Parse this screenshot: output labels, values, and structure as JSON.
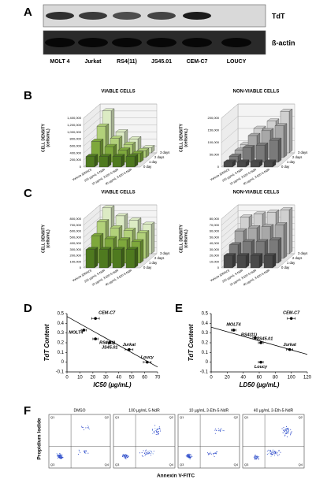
{
  "panel_labels": [
    "A",
    "B",
    "C",
    "D",
    "E",
    "F"
  ],
  "blot": {
    "bands": [
      "TdT",
      "ß-actin"
    ],
    "lanes": [
      "MOLT 4",
      "Jurkat",
      "RS4(11)",
      "JS45.01",
      "CEM-C7",
      "LOUCY"
    ]
  },
  "chart_data": [
    {
      "type": "bar3d",
      "title": "VIABLE CELLS",
      "y_label": [
        "CELL DENSITY",
        "(cells/mL)"
      ],
      "categories": [
        "Vehicle (DMSO)",
        "100 µg/mL 5-NdR",
        "10 µg/mL 3-Eth-5-NdR",
        "40 µg/mL 3-Eth-5-NdR"
      ],
      "series": [
        {
          "name": "0 day",
          "color": "#4f7a1f",
          "values": [
            300000,
            300000,
            300000,
            300000
          ]
        },
        {
          "name": "1 day",
          "color": "#7ea83c",
          "values": [
            600000,
            450000,
            350000,
            250000
          ]
        },
        {
          "name": "2 days",
          "color": "#b2d17a",
          "values": [
            900000,
            550000,
            380000,
            200000
          ]
        },
        {
          "name": "3 days",
          "color": "#dcebc4",
          "values": [
            1200000,
            600000,
            400000,
            150000
          ]
        }
      ],
      "ylim": [
        0,
        1400000
      ],
      "yticks": [
        {
          "value": 0,
          "label": "0"
        },
        {
          "value": 200000,
          "label": "200,000"
        },
        {
          "value": 400000,
          "label": "400,000"
        },
        {
          "value": 600000,
          "label": "600,000"
        },
        {
          "value": 800000,
          "label": "800,000"
        },
        {
          "value": 1000000,
          "label": "1,000,000"
        },
        {
          "value": 1200000,
          "label": "1,200,000"
        },
        {
          "value": 1400000,
          "label": "1,400,000"
        }
      ],
      "grid": true
    },
    {
      "type": "bar3d",
      "title": "NON-VIABLE CELLS",
      "y_label": [
        "CELL DENSITY",
        "(cells/mL)"
      ],
      "categories": [
        "Vehicle (DMSO)",
        "100 µg/mL 5-NdR",
        "10 µg/mL 3-Eth-5-NdR",
        "40 µg/mL 3-Eth-5-NdR"
      ],
      "series": [
        {
          "name": "0 day",
          "color": "#4a4a4a",
          "values": [
            20000,
            20000,
            20000,
            20000
          ]
        },
        {
          "name": "1 day",
          "color": "#7a7a7a",
          "values": [
            25000,
            60000,
            70000,
            90000
          ]
        },
        {
          "name": "2 days",
          "color": "#a8a8a8",
          "values": [
            30000,
            90000,
            110000,
            130000
          ]
        },
        {
          "name": "3 days",
          "color": "#d0d0d0",
          "values": [
            35000,
            100000,
            130000,
            170000
          ]
        }
      ],
      "ylim": [
        0,
        200000
      ],
      "yticks": [
        {
          "value": 0,
          "label": "0"
        },
        {
          "value": 50000,
          "label": "50,000"
        },
        {
          "value": 100000,
          "label": "100,000"
        },
        {
          "value": 150000,
          "label": "150,000"
        },
        {
          "value": 200000,
          "label": "200,000"
        }
      ],
      "grid": true
    },
    {
      "type": "bar3d",
      "title": "VIABLE CELLS",
      "y_label": [
        "CELL DENSITY",
        "(cells/mL)"
      ],
      "categories": [
        "Vehicle (DMSO)",
        "100 µg/mL 5-NdR",
        "10 µg/mL 3-Eth-5-NdR",
        "40 µg/mL 3-Eth-5-NdR"
      ],
      "series": [
        {
          "name": "0 day",
          "color": "#4f7a1f",
          "values": [
            300000,
            300000,
            300000,
            300000
          ]
        },
        {
          "name": "1 day",
          "color": "#7ea83c",
          "values": [
            450000,
            400000,
            380000,
            350000
          ]
        },
        {
          "name": "2 days",
          "color": "#b2d17a",
          "values": [
            600000,
            500000,
            460000,
            420000
          ]
        },
        {
          "name": "3 days",
          "color": "#dcebc4",
          "values": [
            750000,
            620000,
            550000,
            480000
          ]
        }
      ],
      "ylim": [
        0,
        800000
      ],
      "yticks": [
        {
          "value": 0,
          "label": "0"
        },
        {
          "value": 100000,
          "label": "100,000"
        },
        {
          "value": 200000,
          "label": "200,000"
        },
        {
          "value": 300000,
          "label": "300,000"
        },
        {
          "value": 400000,
          "label": "400,000"
        },
        {
          "value": 500000,
          "label": "500,000"
        },
        {
          "value": 600000,
          "label": "600,000"
        },
        {
          "value": 700000,
          "label": "700,000"
        },
        {
          "value": 800000,
          "label": "800,000"
        }
      ],
      "grid": true
    },
    {
      "type": "bar3d",
      "title": "NON-VIABLE CELLS",
      "y_label": [
        "CELL DENSITY",
        "(cells/mL)"
      ],
      "categories": [
        "Vehicle (DMSO)",
        "100 µg/mL 5-NdR",
        "10 µg/mL 3-Eth-5-NdR",
        "40 µg/mL 3-Eth-5-NdR"
      ],
      "series": [
        {
          "name": "0 day",
          "color": "#4a4a4a",
          "values": [
            20000,
            20000,
            20000,
            20000
          ]
        },
        {
          "name": "1 day",
          "color": "#7a7a7a",
          "values": [
            30000,
            35000,
            35000,
            38000
          ]
        },
        {
          "name": "2 days",
          "color": "#a8a8a8",
          "values": [
            45000,
            50000,
            52000,
            55000
          ]
        },
        {
          "name": "3 days",
          "color": "#d0d0d0",
          "values": [
            60000,
            65000,
            68000,
            72000
          ]
        }
      ],
      "ylim": [
        0,
        80000
      ],
      "yticks": [
        {
          "value": 0,
          "label": "0"
        },
        {
          "value": 10000,
          "label": "10,000"
        },
        {
          "value": 20000,
          "label": "20,000"
        },
        {
          "value": 30000,
          "label": "30,000"
        },
        {
          "value": 40000,
          "label": "40,000"
        },
        {
          "value": 50000,
          "label": "50,000"
        },
        {
          "value": 60000,
          "label": "60,000"
        },
        {
          "value": 70000,
          "label": "70,000"
        },
        {
          "value": 80000,
          "label": "80,000"
        }
      ],
      "grid": true
    },
    {
      "type": "scatter",
      "x_label": "IC50 (µg/mL)",
      "y_label": "TdT Content",
      "categories": [
        "MOLT4",
        "CEM-C7",
        "RS4(11)",
        "JS45.01",
        "Jurkat",
        "Loucy"
      ],
      "x": [
        13,
        22,
        22,
        33,
        48,
        62
      ],
      "values": [
        0.33,
        0.45,
        0.24,
        0.2,
        0.13,
        0.0
      ],
      "x_error": [
        2,
        3,
        2,
        3,
        3,
        3
      ],
      "color": "#000000",
      "trend_line": {
        "x": [
          0,
          70
        ],
        "y": [
          0.47,
          -0.05
        ]
      },
      "xlim": [
        0,
        70
      ],
      "xticks": [
        0,
        10,
        20,
        30,
        40,
        50,
        60,
        70
      ],
      "ylim": [
        -0.1,
        0.5
      ],
      "yticks": [
        -0.1,
        0,
        0.1,
        0.2,
        0.3,
        0.4,
        0.5
      ]
    },
    {
      "type": "scatter",
      "x_label": "LD50 (µg/mL)",
      "y_label": "TdT Content",
      "categories": [
        "MOLT4",
        "CEM-C7",
        "RS4(11)",
        "JS45.01",
        "Jurkat",
        "Loucy"
      ],
      "x": [
        28,
        100,
        55,
        62,
        98,
        62
      ],
      "values": [
        0.33,
        0.45,
        0.25,
        0.2,
        0.13,
        0.0
      ],
      "x_error": [
        3,
        5,
        3,
        3,
        4,
        3
      ],
      "color": "#000000",
      "trend_line": {
        "x": [
          0,
          120
        ],
        "y": [
          0.36,
          0.08
        ]
      },
      "xlim": [
        0,
        120
      ],
      "xticks": [
        0,
        20,
        40,
        60,
        80,
        100,
        120
      ],
      "ylim": [
        -0.1,
        0.5
      ],
      "yticks": [
        -0.1,
        0,
        0.1,
        0.2,
        0.3,
        0.4,
        0.5
      ]
    }
  ],
  "flow": {
    "titles": [
      "DMSO",
      "100 µg/mL 5-NdR",
      "10 µg/mL 3-Eth-5-NdR",
      "40 µg/mL 3-Eth-5-NdR"
    ],
    "quadrants": [
      "Q1",
      "Q2",
      "Q3",
      "Q4"
    ],
    "y_label": "Propidium Iodide",
    "x_label": "Annexin V-FITC"
  }
}
